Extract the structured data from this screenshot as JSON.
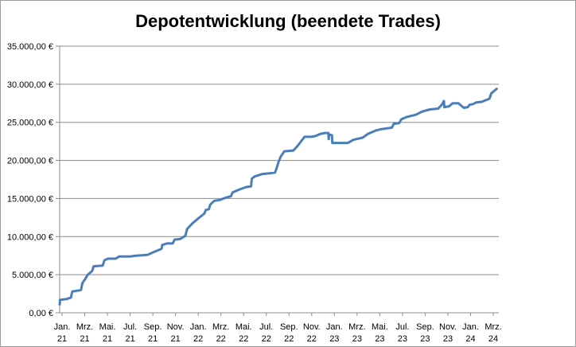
{
  "chart_data": {
    "type": "line",
    "title": "Depotentwicklung (beendete Trades)",
    "xlabel": "",
    "ylabel": "",
    "ylim": [
      0,
      35000
    ],
    "grid": true,
    "legend": "none",
    "y_ticks": [
      "0,00 €",
      "5.000,00 €",
      "10.000,00 €",
      "15.000,00 €",
      "20.000,00 €",
      "25.000,00 €",
      "30.000,00 €",
      "35.000,00 €"
    ],
    "y_tick_values": [
      0,
      5000,
      10000,
      15000,
      20000,
      25000,
      30000,
      35000
    ],
    "x_ticks": [
      {
        "month": "Jan.",
        "year": "21"
      },
      {
        "month": "Mrz.",
        "year": "21"
      },
      {
        "month": "Mai.",
        "year": "21"
      },
      {
        "month": "Jul.",
        "year": "21"
      },
      {
        "month": "Sep.",
        "year": "21"
      },
      {
        "month": "Nov.",
        "year": "21"
      },
      {
        "month": "Jan.",
        "year": "22"
      },
      {
        "month": "Mrz.",
        "year": "22"
      },
      {
        "month": "Mai.",
        "year": "22"
      },
      {
        "month": "Jul.",
        "year": "22"
      },
      {
        "month": "Sep.",
        "year": "22"
      },
      {
        "month": "Nov.",
        "year": "22"
      },
      {
        "month": "Jan.",
        "year": "23"
      },
      {
        "month": "Mrz.",
        "year": "23"
      },
      {
        "month": "Mai.",
        "year": "23"
      },
      {
        "month": "Jul.",
        "year": "23"
      },
      {
        "month": "Sep.",
        "year": "23"
      },
      {
        "month": "Nov.",
        "year": "23"
      },
      {
        "month": "Jan.",
        "year": "24"
      },
      {
        "month": "Mrz.",
        "year": "24"
      }
    ],
    "x_range": [
      "2021-01-01",
      "2024-05-01"
    ],
    "series": [
      {
        "color": "#4a7ebb",
        "points": [
          [
            "2021-01-01",
            1100
          ],
          [
            "2021-01-02",
            1700
          ],
          [
            "2021-01-20",
            1800
          ],
          [
            "2021-02-01",
            2000
          ],
          [
            "2021-02-05",
            2800
          ],
          [
            "2021-02-20",
            2900
          ],
          [
            "2021-03-01",
            3000
          ],
          [
            "2021-03-05",
            3900
          ],
          [
            "2021-03-12",
            4400
          ],
          [
            "2021-03-20",
            5000
          ],
          [
            "2021-04-01",
            5500
          ],
          [
            "2021-04-05",
            6100
          ],
          [
            "2021-04-30",
            6200
          ],
          [
            "2021-05-05",
            6900
          ],
          [
            "2021-05-15",
            7100
          ],
          [
            "2021-06-05",
            7100
          ],
          [
            "2021-06-15",
            7400
          ],
          [
            "2021-07-15",
            7400
          ],
          [
            "2021-08-01",
            7500
          ],
          [
            "2021-09-01",
            7600
          ],
          [
            "2021-09-15",
            7900
          ],
          [
            "2021-10-10",
            8400
          ],
          [
            "2021-10-12",
            8900
          ],
          [
            "2021-10-25",
            9100
          ],
          [
            "2021-11-10",
            9100
          ],
          [
            "2021-11-15",
            9600
          ],
          [
            "2021-12-01",
            9700
          ],
          [
            "2021-12-15",
            10100
          ],
          [
            "2021-12-20",
            11000
          ],
          [
            "2022-01-05",
            11800
          ],
          [
            "2022-01-20",
            12400
          ],
          [
            "2022-02-05",
            13000
          ],
          [
            "2022-02-10",
            13500
          ],
          [
            "2022-02-18",
            13600
          ],
          [
            "2022-02-22",
            14200
          ],
          [
            "2022-03-05",
            14700
          ],
          [
            "2022-03-20",
            14800
          ],
          [
            "2022-04-05",
            15100
          ],
          [
            "2022-04-20",
            15300
          ],
          [
            "2022-04-25",
            15800
          ],
          [
            "2022-05-15",
            16200
          ],
          [
            "2022-06-01",
            16500
          ],
          [
            "2022-06-15",
            16600
          ],
          [
            "2022-06-17",
            17600
          ],
          [
            "2022-06-25",
            17900
          ],
          [
            "2022-07-15",
            18200
          ],
          [
            "2022-08-05",
            18300
          ],
          [
            "2022-08-20",
            18400
          ],
          [
            "2022-08-25",
            19000
          ],
          [
            "2022-08-30",
            19800
          ],
          [
            "2022-09-05",
            20500
          ],
          [
            "2022-09-15",
            21200
          ],
          [
            "2022-10-10",
            21300
          ],
          [
            "2022-10-20",
            21800
          ],
          [
            "2022-10-25",
            22100
          ],
          [
            "2022-11-10",
            23100
          ],
          [
            "2022-11-30",
            23100
          ],
          [
            "2022-12-10",
            23200
          ],
          [
            "2022-12-25",
            23500
          ],
          [
            "2023-01-05",
            23600
          ],
          [
            "2023-01-15",
            23600
          ],
          [
            "2023-01-16",
            22800
          ],
          [
            "2023-01-17",
            23400
          ],
          [
            "2023-01-25",
            23300
          ],
          [
            "2023-01-26",
            22300
          ],
          [
            "2023-02-20",
            22300
          ],
          [
            "2023-03-10",
            22300
          ],
          [
            "2023-03-25",
            22700
          ],
          [
            "2023-04-20",
            23000
          ],
          [
            "2023-05-05",
            23500
          ],
          [
            "2023-05-25",
            23900
          ],
          [
            "2023-06-10",
            24100
          ],
          [
            "2023-07-10",
            24300
          ],
          [
            "2023-07-15",
            24800
          ],
          [
            "2023-07-30",
            24900
          ],
          [
            "2023-08-05",
            25400
          ],
          [
            "2023-08-20",
            25700
          ],
          [
            "2023-09-15",
            26000
          ],
          [
            "2023-10-01",
            26400
          ],
          [
            "2023-10-15",
            26600
          ],
          [
            "2023-10-25",
            26700
          ],
          [
            "2023-11-15",
            26800
          ],
          [
            "2023-11-25",
            27300
          ],
          [
            "2023-12-01",
            27800
          ],
          [
            "2023-12-02",
            27000
          ],
          [
            "2023-12-15",
            27100
          ],
          [
            "2023-12-25",
            27500
          ],
          [
            "2024-01-10",
            27500
          ],
          [
            "2024-01-25",
            26900
          ],
          [
            "2024-02-05",
            27000
          ],
          [
            "2024-02-10",
            27300
          ],
          [
            "2024-02-20",
            27400
          ],
          [
            "2024-02-28",
            27600
          ],
          [
            "2024-03-15",
            27700
          ],
          [
            "2024-03-25",
            27900
          ],
          [
            "2024-04-05",
            28100
          ],
          [
            "2024-04-10",
            28800
          ],
          [
            "2024-04-25",
            29400
          ]
        ]
      }
    ]
  }
}
